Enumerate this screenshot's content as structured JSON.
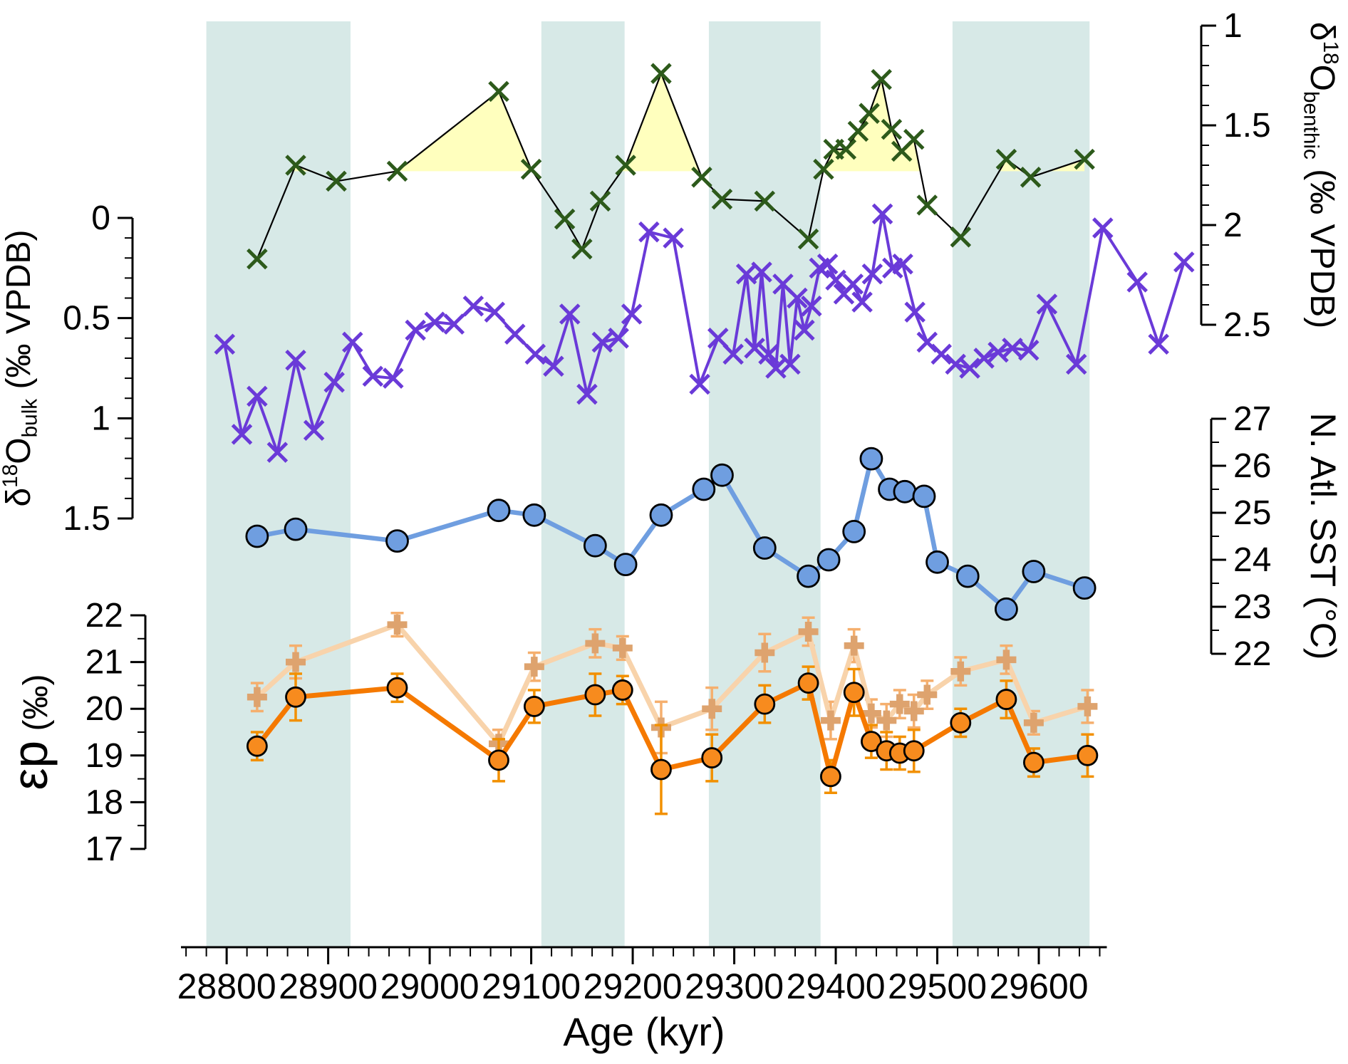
{
  "figure": {
    "background": "#ffffff"
  },
  "chart_data": {
    "type": "line",
    "title": "",
    "x_axis": {
      "label": "Age (kyr)",
      "range": [
        28755,
        29760
      ],
      "axis_span": [
        28755,
        29667
      ],
      "ticks": [
        28800,
        28900,
        29000,
        29100,
        29200,
        29300,
        29400,
        29500,
        29600
      ],
      "minor_step": 20
    },
    "bands": {
      "color": "#d7e9e7",
      "intervals": [
        [
          28780,
          28922
        ],
        [
          29110,
          29192
        ],
        [
          29275,
          29385
        ],
        [
          29515,
          29650
        ]
      ]
    },
    "y_axes": {
      "bulk": {
        "side": "left",
        "title_segments": [
          {
            "t": "δ"
          },
          {
            "t": "18",
            "pos": "sup"
          },
          {
            "t": "O"
          },
          {
            "t": "bulk",
            "pos": "sub"
          },
          {
            "t": " (‰ VPDB)"
          }
        ],
        "range": [
          0,
          1.5
        ],
        "reversed": true,
        "ticks": [
          0,
          0.5,
          1,
          1.5
        ],
        "minor_step": 0.1,
        "title_size": 48
      },
      "ep": {
        "side": "left",
        "title_segments": [
          {
            "t": "ε",
            "size": 1.45
          },
          {
            "t": "p",
            "size": 1.45
          },
          {
            "t": "  (‰)",
            "size": 1
          }
        ],
        "range": [
          17,
          22
        ],
        "ticks": [
          17,
          18,
          19,
          20,
          21,
          22
        ],
        "minor_step": 0.5,
        "title_size": 48
      },
      "benthic": {
        "side": "right",
        "title_segments": [
          {
            "t": "δ"
          },
          {
            "t": "18",
            "pos": "sup"
          },
          {
            "t": "O"
          },
          {
            "t": "benthic",
            "pos": "sub"
          },
          {
            "t": " (‰ VPDB)"
          }
        ],
        "range": [
          1,
          2.5
        ],
        "reversed": true,
        "ticks": [
          1,
          1.5,
          2,
          2.5
        ],
        "minor_step": 0.1,
        "title_size": 48
      },
      "sst": {
        "side": "right",
        "title_segments": [
          {
            "t": "N. Atl. SST (°C)"
          }
        ],
        "range": [
          22,
          27
        ],
        "ticks": [
          22,
          23,
          24,
          25,
          26,
          27
        ],
        "minor_step": 0.5,
        "title_size": 50
      }
    },
    "series": [
      {
        "id": "benthic-d18o",
        "axis": "benthic",
        "marker": "x",
        "marker_color": "#2d5a1b",
        "line_color": "#000000",
        "line_width": 2.2,
        "marker_size": 13,
        "marker_stroke": 5,
        "fill_above_baseline": {
          "value": 1.73,
          "color": "#ffffbe"
        },
        "points": [
          [
            28830,
            2.17
          ],
          [
            28868,
            1.7
          ],
          [
            28908,
            1.78
          ],
          [
            28968,
            1.73
          ],
          [
            29068,
            1.33
          ],
          [
            29100,
            1.72
          ],
          [
            29133,
            1.97
          ],
          [
            29150,
            2.12
          ],
          [
            29168,
            1.88
          ],
          [
            29193,
            1.7
          ],
          [
            29228,
            1.24
          ],
          [
            29268,
            1.76
          ],
          [
            29288,
            1.87
          ],
          [
            29330,
            1.88
          ],
          [
            29373,
            2.07
          ],
          [
            29388,
            1.72
          ],
          [
            29398,
            1.62
          ],
          [
            29410,
            1.62
          ],
          [
            29422,
            1.53
          ],
          [
            29433,
            1.44
          ],
          [
            29445,
            1.27
          ],
          [
            29455,
            1.52
          ],
          [
            29465,
            1.63
          ],
          [
            29477,
            1.57
          ],
          [
            29490,
            1.9
          ],
          [
            29523,
            2.06
          ],
          [
            29568,
            1.67
          ],
          [
            29592,
            1.76
          ],
          [
            29645,
            1.67
          ]
        ]
      },
      {
        "id": "bulk-d18o",
        "axis": "bulk",
        "marker": "x",
        "marker_color": "#6a3ad8",
        "line_color": "#6a3ad8",
        "line_width": 4,
        "marker_size": 13,
        "marker_stroke": 5,
        "points": [
          [
            28798,
            0.63
          ],
          [
            28815,
            1.08
          ],
          [
            28830,
            0.89
          ],
          [
            28850,
            1.17
          ],
          [
            28868,
            0.71
          ],
          [
            28886,
            1.06
          ],
          [
            28906,
            0.82
          ],
          [
            28924,
            0.62
          ],
          [
            28944,
            0.79
          ],
          [
            28964,
            0.8
          ],
          [
            28986,
            0.56
          ],
          [
            29005,
            0.52
          ],
          [
            29024,
            0.53
          ],
          [
            29043,
            0.44
          ],
          [
            29064,
            0.47
          ],
          [
            29084,
            0.58
          ],
          [
            29104,
            0.68
          ],
          [
            29122,
            0.74
          ],
          [
            29138,
            0.48
          ],
          [
            29155,
            0.88
          ],
          [
            29170,
            0.62
          ],
          [
            29186,
            0.6
          ],
          [
            29199,
            0.48
          ],
          [
            29216,
            0.07
          ],
          [
            29240,
            0.1
          ],
          [
            29266,
            0.83
          ],
          [
            29284,
            0.6
          ],
          [
            29299,
            0.68
          ],
          [
            29312,
            0.28
          ],
          [
            29320,
            0.65
          ],
          [
            29327,
            0.27
          ],
          [
            29334,
            0.68
          ],
          [
            29341,
            0.75
          ],
          [
            29348,
            0.33
          ],
          [
            29355,
            0.73
          ],
          [
            29362,
            0.4
          ],
          [
            29369,
            0.56
          ],
          [
            29376,
            0.44
          ],
          [
            29384,
            0.25
          ],
          [
            29392,
            0.23
          ],
          [
            29400,
            0.31
          ],
          [
            29408,
            0.38
          ],
          [
            29417,
            0.33
          ],
          [
            29426,
            0.42
          ],
          [
            29436,
            0.28
          ],
          [
            29446,
            -0.02
          ],
          [
            29456,
            0.25
          ],
          [
            29466,
            0.23
          ],
          [
            29478,
            0.47
          ],
          [
            29490,
            0.62
          ],
          [
            29504,
            0.68
          ],
          [
            29518,
            0.73
          ],
          [
            29532,
            0.75
          ],
          [
            29546,
            0.7
          ],
          [
            29560,
            0.67
          ],
          [
            29574,
            0.65
          ],
          [
            29590,
            0.66
          ],
          [
            29608,
            0.43
          ],
          [
            29637,
            0.73
          ],
          [
            29663,
            0.05
          ],
          [
            29697,
            0.32
          ],
          [
            29718,
            0.63
          ],
          [
            29743,
            0.22
          ]
        ]
      },
      {
        "id": "north-atlantic-sst",
        "axis": "sst",
        "marker": "circle",
        "marker_color": "#6f9ee0",
        "marker_edge": "#000000",
        "line_color": "#6f9ee0",
        "line_width": 6.5,
        "marker_size": 15,
        "points": [
          [
            28830,
            24.5
          ],
          [
            28868,
            24.65
          ],
          [
            28968,
            24.4
          ],
          [
            29068,
            25.05
          ],
          [
            29103,
            24.95
          ],
          [
            29163,
            24.3
          ],
          [
            29193,
            23.9
          ],
          [
            29228,
            24.95
          ],
          [
            29270,
            25.5
          ],
          [
            29288,
            25.8
          ],
          [
            29330,
            24.25
          ],
          [
            29373,
            23.65
          ],
          [
            29393,
            24.0
          ],
          [
            29418,
            24.6
          ],
          [
            29435,
            26.15
          ],
          [
            29453,
            25.5
          ],
          [
            29468,
            25.45
          ],
          [
            29487,
            25.35
          ],
          [
            29500,
            23.95
          ],
          [
            29530,
            23.65
          ],
          [
            29568,
            22.95
          ],
          [
            29595,
            23.75
          ],
          [
            29645,
            23.4
          ]
        ]
      },
      {
        "id": "ep-secondary",
        "axis": "ep",
        "marker": "plus",
        "marker_color": "#dea36e",
        "line_color": "#f8d3ab",
        "line_width": 7,
        "marker_size": 14,
        "marker_stroke": 9.5,
        "error_color": "#f5af6e",
        "points": [
          [
            28830,
            20.25,
            0.3
          ],
          [
            28868,
            21.0,
            0.35
          ],
          [
            28968,
            21.8,
            0.25
          ],
          [
            29068,
            19.25,
            0.3
          ],
          [
            29103,
            20.9,
            0.3
          ],
          [
            29163,
            21.4,
            0.3
          ],
          [
            29190,
            21.3,
            0.25
          ],
          [
            29228,
            19.6,
            0.55
          ],
          [
            29278,
            20.0,
            0.45
          ],
          [
            29330,
            21.2,
            0.4
          ],
          [
            29373,
            21.65,
            0.3
          ],
          [
            29395,
            19.75,
            0.4
          ],
          [
            29418,
            21.35,
            0.35
          ],
          [
            29435,
            19.9,
            0.3
          ],
          [
            29450,
            19.75,
            0.35
          ],
          [
            29463,
            20.1,
            0.3
          ],
          [
            29477,
            19.95,
            0.35
          ],
          [
            29490,
            20.3,
            0.3
          ],
          [
            29523,
            20.8,
            0.3
          ],
          [
            29568,
            21.05,
            0.3
          ],
          [
            29595,
            19.7,
            0.25
          ],
          [
            29648,
            20.05,
            0.35
          ]
        ]
      },
      {
        "id": "ep-primary",
        "axis": "ep",
        "marker": "circle",
        "marker_color": "#f78b1e",
        "marker_edge": "#000000",
        "line_color": "#f57900",
        "line_width": 7,
        "marker_size": 13.5,
        "error_color": "#f29000",
        "points": [
          [
            28830,
            19.2,
            0.3
          ],
          [
            28868,
            20.25,
            0.5
          ],
          [
            28968,
            20.45,
            0.3
          ],
          [
            29068,
            18.9,
            0.45
          ],
          [
            29103,
            20.05,
            0.35
          ],
          [
            29163,
            20.3,
            0.45
          ],
          [
            29190,
            20.4,
            0.3
          ],
          [
            29228,
            18.7,
            0.95
          ],
          [
            29278,
            18.95,
            0.5
          ],
          [
            29330,
            20.1,
            0.4
          ],
          [
            29373,
            20.55,
            0.35
          ],
          [
            29395,
            18.55,
            0.35
          ],
          [
            29418,
            20.35,
            0.5
          ],
          [
            29435,
            19.3,
            0.35
          ],
          [
            29450,
            19.1,
            0.4
          ],
          [
            29463,
            19.05,
            0.35
          ],
          [
            29477,
            19.1,
            0.45
          ],
          [
            29523,
            19.7,
            0.3
          ],
          [
            29568,
            20.2,
            0.4
          ],
          [
            29595,
            18.85,
            0.3
          ],
          [
            29648,
            19.0,
            0.45
          ]
        ]
      }
    ]
  }
}
